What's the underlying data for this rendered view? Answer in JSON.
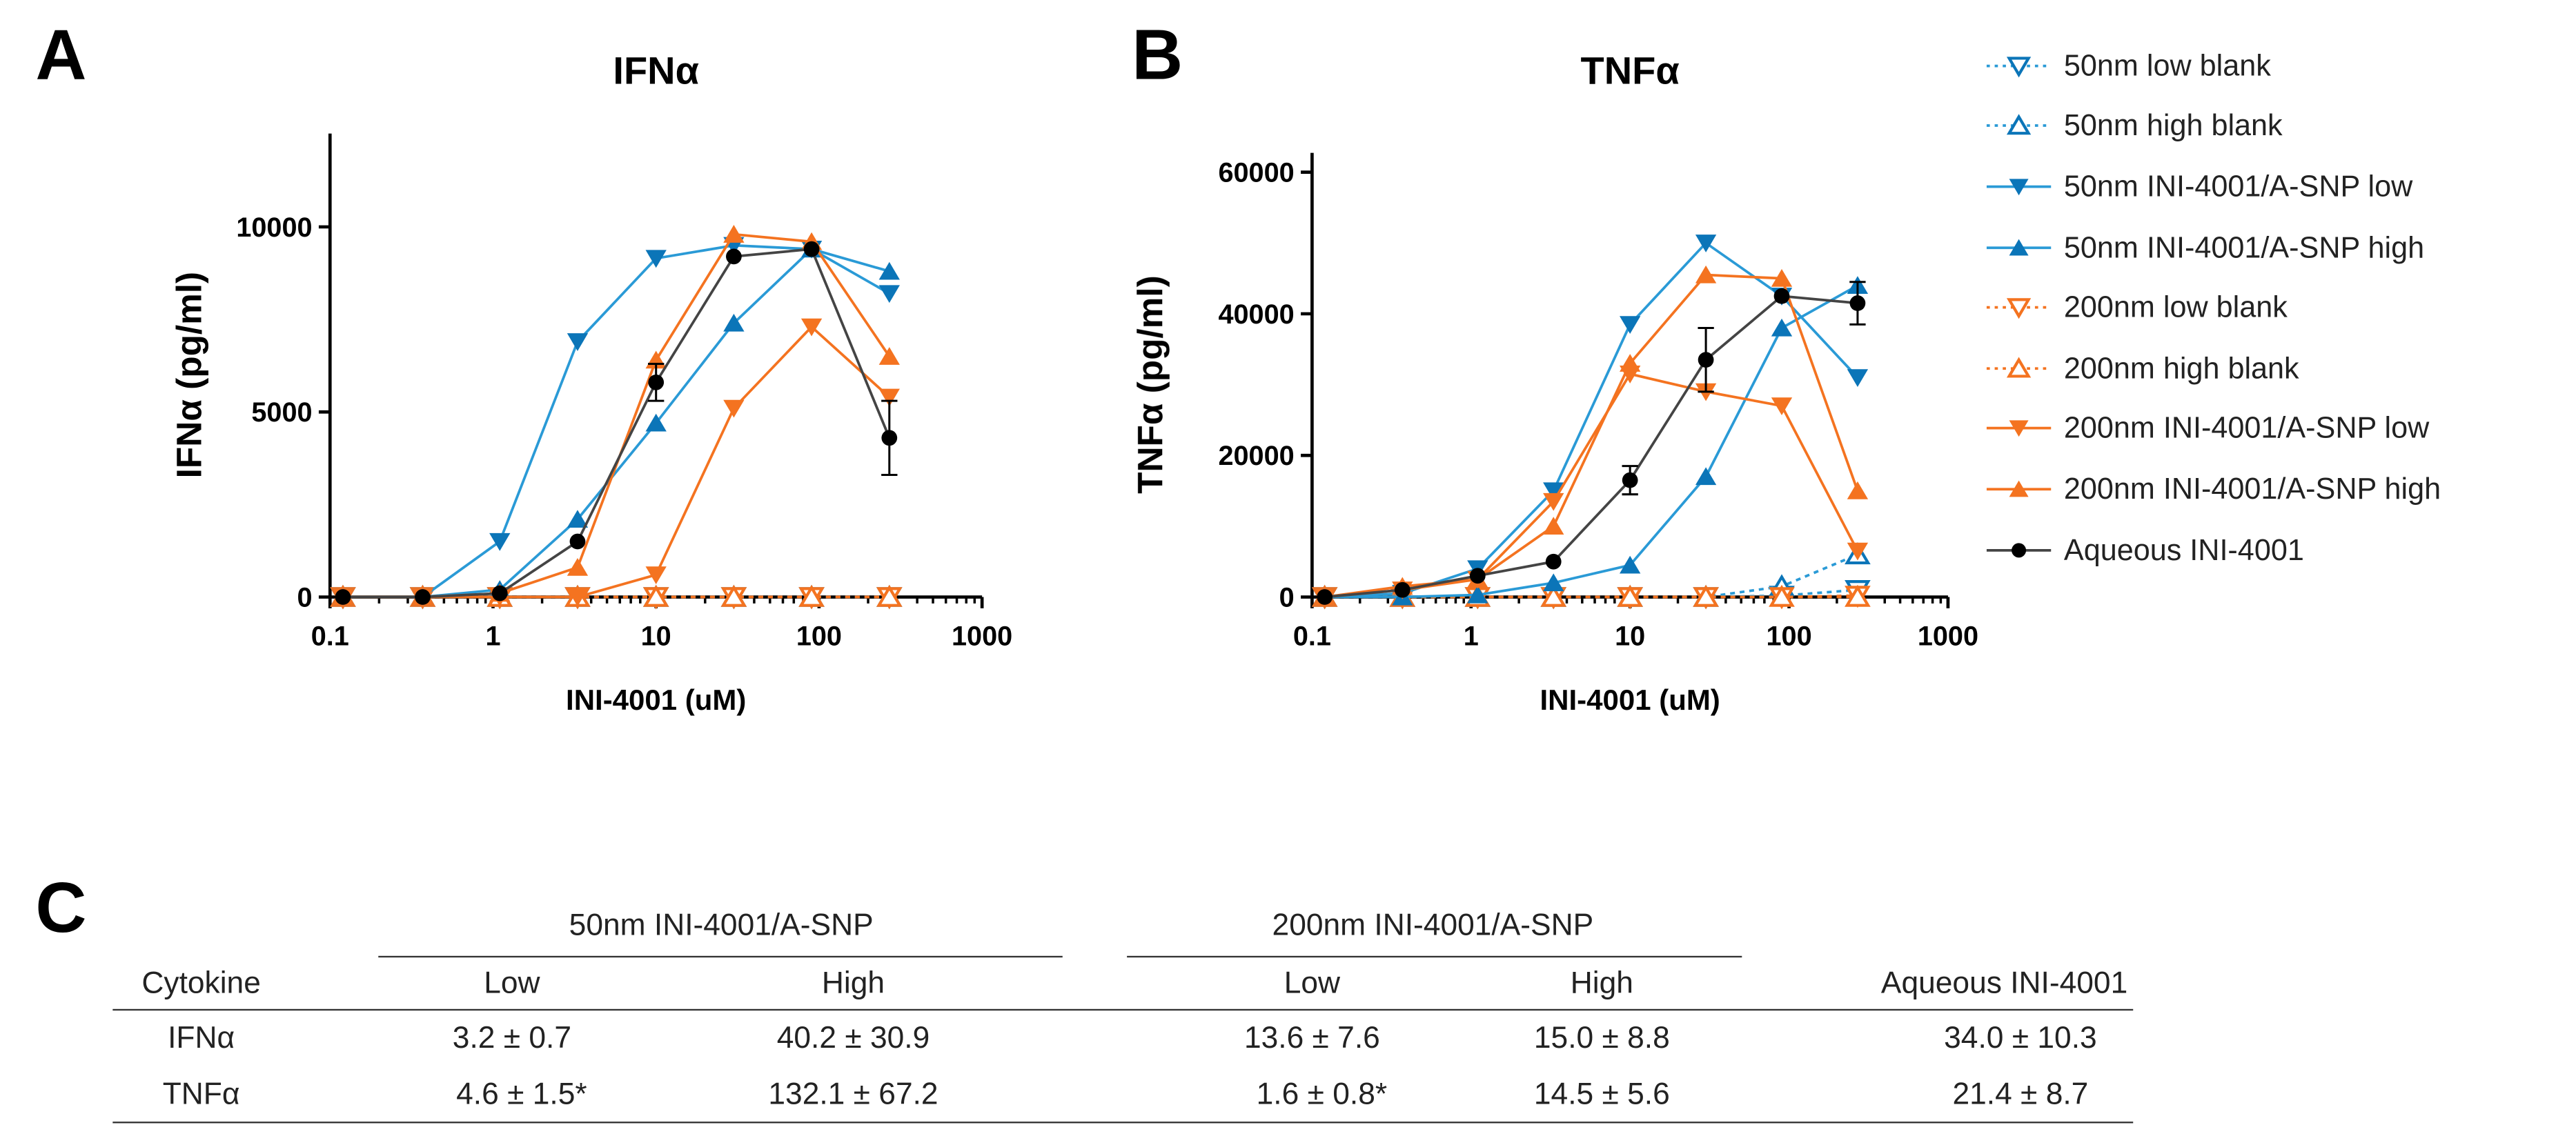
{
  "panels": {
    "a": "A",
    "b": "B",
    "c": "C"
  },
  "colors": {
    "blue_line": "#2a9ad6",
    "blue_marker": "#0b75b8",
    "orange": "#f47320",
    "black": "#000000"
  },
  "legend": [
    {
      "label": "50nm low blank",
      "color": "blue",
      "marker": "down-open",
      "dash": true
    },
    {
      "label": "50nm high blank",
      "color": "blue",
      "marker": "up-open",
      "dash": true
    },
    {
      "label": "50nm INI-4001/A-SNP low",
      "color": "blue",
      "marker": "down",
      "dash": false
    },
    {
      "label": "50nm INI-4001/A-SNP high",
      "color": "blue",
      "marker": "up",
      "dash": false
    },
    {
      "label": "200nm low blank",
      "color": "orange",
      "marker": "down-open",
      "dash": true
    },
    {
      "label": "200nm high blank",
      "color": "orange",
      "marker": "up-open",
      "dash": true
    },
    {
      "label": "200nm INI-4001/A-SNP low",
      "color": "orange",
      "marker": "down",
      "dash": false
    },
    {
      "label": "200nm INI-4001/A-SNP high",
      "color": "orange",
      "marker": "up",
      "dash": false
    },
    {
      "label": "Aqueous INI-4001",
      "color": "black",
      "marker": "circle",
      "dash": false
    }
  ],
  "chart_data": [
    {
      "type": "line",
      "title": "IFNα",
      "xlabel": "INI-4001 (uM)",
      "ylabel": "IFNα (pg/ml)",
      "xscale": "log",
      "xlim": [
        0.1,
        1000
      ],
      "ylim": [
        0,
        12000
      ],
      "xticks": [
        "0.1",
        "1",
        "10",
        "100",
        "1000"
      ],
      "xtick_values": [
        0.1,
        1,
        10,
        100,
        1000
      ],
      "yticks": [
        "0",
        "5000",
        "10000"
      ],
      "ytick_values": [
        0,
        5000,
        10000
      ],
      "x": [
        0.12,
        0.37,
        1.1,
        3.3,
        10,
        30,
        90,
        270
      ],
      "series": [
        {
          "name": "50nm low blank",
          "values": [
            0,
            0,
            0,
            0,
            0,
            0,
            0,
            0
          ]
        },
        {
          "name": "50nm high blank",
          "values": [
            0,
            0,
            0,
            0,
            0,
            0,
            0,
            0
          ]
        },
        {
          "name": "200nm low blank",
          "values": [
            0,
            0,
            0,
            0,
            0,
            0,
            0,
            0
          ]
        },
        {
          "name": "200nm high blank",
          "values": [
            0,
            0,
            0,
            0,
            0,
            0,
            0,
            0
          ]
        },
        {
          "name": "50nm INI-4001/A-SNP low",
          "values": [
            0,
            0,
            1500,
            6900,
            9150,
            9500,
            9400,
            8200
          ]
        },
        {
          "name": "50nm INI-4001/A-SNP high",
          "values": [
            0,
            0,
            200,
            2100,
            4700,
            7400,
            9400,
            8800
          ]
        },
        {
          "name": "200nm INI-4001/A-SNP low",
          "values": [
            0,
            0,
            0,
            0,
            600,
            5100,
            7300,
            5400
          ]
        },
        {
          "name": "200nm INI-4001/A-SNP high",
          "values": [
            0,
            0,
            100,
            800,
            6400,
            9800,
            9600,
            6500
          ]
        },
        {
          "name": "Aqueous INI-4001",
          "values": [
            0,
            0,
            100,
            1500,
            5800,
            9200,
            9400,
            4300
          ],
          "errors": [
            0,
            0,
            0,
            0,
            500,
            0,
            0,
            1000
          ]
        }
      ]
    },
    {
      "type": "line",
      "title": "TNFα",
      "xlabel": "INI-4001 (uM)",
      "ylabel": "TNFα (pg/ml)",
      "xscale": "log",
      "xlim": [
        0.1,
        1000
      ],
      "ylim": [
        0,
        60000
      ],
      "xticks": [
        "0.1",
        "1",
        "10",
        "100",
        "1000"
      ],
      "xtick_values": [
        0.1,
        1,
        10,
        100,
        1000
      ],
      "yticks": [
        "0",
        "20000",
        "40000",
        "60000"
      ],
      "ytick_values": [
        0,
        20000,
        40000,
        60000
      ],
      "x": [
        0.12,
        0.37,
        1.1,
        3.3,
        10,
        30,
        90,
        270
      ],
      "series": [
        {
          "name": "50nm low blank",
          "values": [
            0,
            0,
            0,
            0,
            0,
            0,
            200,
            1000
          ]
        },
        {
          "name": "50nm high blank",
          "values": [
            0,
            0,
            0,
            0,
            0,
            0,
            1500,
            6000
          ]
        },
        {
          "name": "200nm low blank",
          "values": [
            0,
            0,
            0,
            0,
            0,
            0,
            0,
            200
          ]
        },
        {
          "name": "200nm high blank",
          "values": [
            0,
            0,
            0,
            0,
            0,
            0,
            0,
            0
          ]
        },
        {
          "name": "50nm INI-4001/A-SNP low",
          "values": [
            0,
            500,
            4000,
            15000,
            38500,
            50000,
            42500,
            31000
          ]
        },
        {
          "name": "50nm INI-4001/A-SNP high",
          "values": [
            0,
            0,
            300,
            2000,
            4500,
            17000,
            38000,
            44000
          ]
        },
        {
          "name": "200nm INI-4001/A-SNP low",
          "values": [
            0,
            1000,
            2500,
            13500,
            31500,
            29000,
            27000,
            6500
          ]
        },
        {
          "name": "200nm INI-4001/A-SNP high",
          "values": [
            0,
            1500,
            2500,
            10000,
            33000,
            45500,
            45000,
            15000
          ]
        },
        {
          "name": "Aqueous INI-4001",
          "values": [
            0,
            1000,
            3000,
            5000,
            16500,
            33500,
            42500,
            41500
          ],
          "errors": [
            0,
            0,
            0,
            0,
            2000,
            4500,
            0,
            3000
          ]
        }
      ]
    }
  ],
  "table": {
    "group_headers": [
      "50nm INI-4001/A-SNP",
      "200nm INI-4001/A-SNP"
    ],
    "columns": [
      "Cytokine",
      "Low",
      "High",
      "Low",
      "High",
      "Aqueous INI-4001"
    ],
    "rows": [
      [
        "IFNα",
        "3.2 ± 0.7",
        "40.2 ± 30.9",
        "13.6 ± 7.6",
        "15.0 ± 8.8",
        "34.0 ± 10.3"
      ],
      [
        "TNFα",
        "4.6 ± 1.5*",
        "132.1 ± 67.2",
        "1.6 ± 0.8*",
        "14.5 ± 5.6",
        "21.4 ± 8.7"
      ]
    ]
  }
}
